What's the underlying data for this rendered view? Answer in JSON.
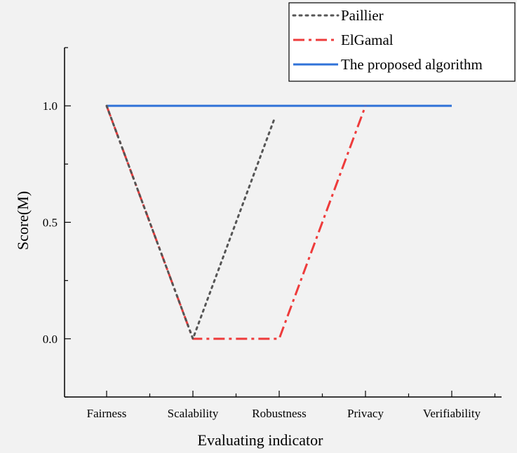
{
  "chart_data": {
    "type": "line",
    "title": "",
    "xlabel": "Evaluating indicator",
    "ylabel": "Score(M)",
    "categories": [
      "Fairness",
      "Scalability",
      "Robustness",
      "Privacy",
      "Verifiability"
    ],
    "ylim": [
      -0.25,
      1.25
    ],
    "yticks": [
      0.0,
      0.5,
      1.0
    ],
    "ytick_labels": [
      "0.0",
      "0.5",
      "1.0"
    ],
    "grid": false,
    "legend_position": "top-right",
    "series": [
      {
        "name": "Paillier",
        "line_style": "dotted",
        "color": "#555555",
        "points": [
          [
            0,
            1.0
          ],
          [
            1,
            0.0
          ],
          [
            1.95,
            0.95
          ]
        ]
      },
      {
        "name": "ElGamal",
        "line_style": "dash-dot",
        "color": "#ee3b3b",
        "points": [
          [
            0,
            1.0
          ],
          [
            1,
            0.0
          ],
          [
            2,
            0.0
          ],
          [
            3,
            1.0
          ]
        ]
      },
      {
        "name": "The proposed algorithm",
        "line_style": "solid",
        "color": "#2f72d8",
        "points": [
          [
            0,
            1.0
          ],
          [
            1,
            1.0
          ],
          [
            2,
            1.0
          ],
          [
            3,
            1.0
          ],
          [
            4,
            1.0
          ]
        ]
      }
    ]
  }
}
